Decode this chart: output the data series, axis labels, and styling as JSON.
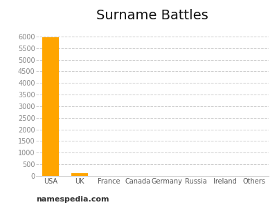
{
  "title": "Surname Battles",
  "categories": [
    "USA",
    "UK",
    "France",
    "Canada",
    "Germany",
    "Russia",
    "Ireland",
    "Others"
  ],
  "values": [
    5980,
    120,
    5,
    8,
    4,
    3,
    2,
    5
  ],
  "bar_color": "#FFA500",
  "ylim": [
    0,
    6500
  ],
  "yticks": [
    0,
    500,
    1000,
    1500,
    2000,
    2500,
    3000,
    3500,
    4000,
    4500,
    5000,
    5500,
    6000
  ],
  "background_color": "#ffffff",
  "footer_text": "namespedia.com",
  "title_fontsize": 14,
  "tick_fontsize": 7,
  "footer_fontsize": 8,
  "ylabel_color": "#888888",
  "xlabel_color": "#555555"
}
